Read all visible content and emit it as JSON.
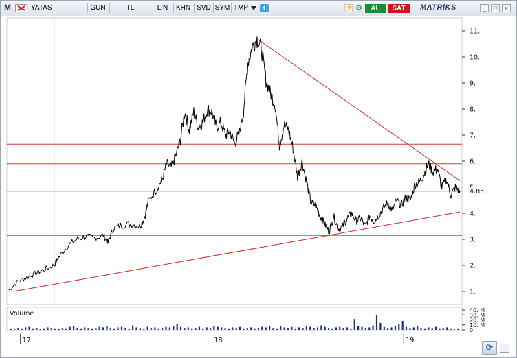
{
  "toolbar": {
    "logo": "M",
    "symbol": "YATAS",
    "buttons": [
      "GUN",
      "TL",
      "LIN",
      "KHN",
      "SVD",
      "SYM",
      "TMP"
    ],
    "buy_label": "AL",
    "sell_label": "SAT",
    "brand": "MATRiKS",
    "window_buttons": [
      "_",
      "□",
      "×"
    ]
  },
  "chart_data": {
    "type": "line",
    "y_ticks": [
      "11.",
      "10.",
      "9.",
      "8.",
      "7.",
      "6.",
      "5.",
      "4.",
      "3.",
      "2.",
      "1."
    ],
    "y_tick_values": [
      11,
      10,
      9,
      8,
      7,
      6,
      5,
      4,
      3,
      2,
      1
    ],
    "ylim": [
      0.5,
      11.5
    ],
    "x_ticks": [
      "17",
      "18",
      "19"
    ],
    "last_value_label": "4.85",
    "last_value": 4.85,
    "horizontal_levels": [
      6.65,
      5.9,
      4.85,
      3.15
    ],
    "trendlines": [
      {
        "from": {
          "t": 0.01,
          "y": 1.0
        },
        "to": {
          "t": 1.0,
          "y": 4.05
        }
      },
      {
        "from": {
          "t": 0.55,
          "y": 10.7
        },
        "to": {
          "t": 1.0,
          "y": 5.25
        }
      }
    ],
    "cursor_t": 0.1,
    "price_points": [
      [
        0.0,
        1.05
      ],
      [
        0.02,
        1.4
      ],
      [
        0.04,
        1.55
      ],
      [
        0.06,
        1.7
      ],
      [
        0.08,
        1.85
      ],
      [
        0.1,
        2.0
      ],
      [
        0.11,
        2.3
      ],
      [
        0.13,
        2.75
      ],
      [
        0.15,
        3.0
      ],
      [
        0.17,
        3.1
      ],
      [
        0.19,
        3.05
      ],
      [
        0.21,
        3.15
      ],
      [
        0.22,
        2.85
      ],
      [
        0.23,
        3.4
      ],
      [
        0.25,
        3.55
      ],
      [
        0.27,
        3.6
      ],
      [
        0.29,
        3.5
      ],
      [
        0.3,
        3.8
      ],
      [
        0.31,
        4.5
      ],
      [
        0.33,
        5.0
      ],
      [
        0.34,
        5.3
      ],
      [
        0.35,
        5.9
      ],
      [
        0.36,
        5.75
      ],
      [
        0.37,
        6.2
      ],
      [
        0.38,
        6.8
      ],
      [
        0.39,
        7.9
      ],
      [
        0.4,
        7.2
      ],
      [
        0.41,
        7.9
      ],
      [
        0.42,
        7.3
      ],
      [
        0.43,
        7.5
      ],
      [
        0.44,
        8.0
      ],
      [
        0.45,
        7.9
      ],
      [
        0.46,
        7.3
      ],
      [
        0.47,
        7.5
      ],
      [
        0.48,
        7.0
      ],
      [
        0.49,
        7.15
      ],
      [
        0.5,
        6.7
      ],
      [
        0.51,
        7.0
      ],
      [
        0.52,
        7.9
      ],
      [
        0.53,
        9.8
      ],
      [
        0.54,
        10.4
      ],
      [
        0.55,
        10.7
      ],
      [
        0.56,
        10.3
      ],
      [
        0.57,
        9.1
      ],
      [
        0.58,
        8.6
      ],
      [
        0.59,
        8.2
      ],
      [
        0.6,
        6.6
      ],
      [
        0.61,
        7.4
      ],
      [
        0.62,
        7.2
      ],
      [
        0.63,
        6.5
      ],
      [
        0.64,
        5.4
      ],
      [
        0.65,
        6.0
      ],
      [
        0.66,
        5.2
      ],
      [
        0.67,
        4.4
      ],
      [
        0.68,
        4.3
      ],
      [
        0.69,
        3.9
      ],
      [
        0.7,
        3.6
      ],
      [
        0.71,
        3.3
      ],
      [
        0.72,
        3.9
      ],
      [
        0.73,
        3.4
      ],
      [
        0.74,
        3.5
      ],
      [
        0.75,
        3.8
      ],
      [
        0.76,
        4.0
      ],
      [
        0.77,
        3.7
      ],
      [
        0.78,
        3.8
      ],
      [
        0.79,
        3.5
      ],
      [
        0.8,
        3.9
      ],
      [
        0.81,
        3.7
      ],
      [
        0.82,
        3.9
      ],
      [
        0.83,
        4.2
      ],
      [
        0.84,
        4.4
      ],
      [
        0.85,
        4.1
      ],
      [
        0.86,
        4.5
      ],
      [
        0.87,
        4.3
      ],
      [
        0.88,
        4.6
      ],
      [
        0.89,
        4.5
      ],
      [
        0.9,
        5.1
      ],
      [
        0.91,
        5.2
      ],
      [
        0.92,
        5.5
      ],
      [
        0.93,
        5.9
      ],
      [
        0.94,
        5.6
      ],
      [
        0.95,
        5.7
      ],
      [
        0.96,
        5.0
      ],
      [
        0.97,
        5.3
      ],
      [
        0.98,
        4.7
      ],
      [
        0.99,
        5.0
      ],
      [
        1.0,
        4.85
      ]
    ]
  },
  "volume": {
    "label": "Volume",
    "ticks": [
      "40. M",
      "30. M",
      "20. M",
      "10. M",
      "0."
    ],
    "tick_values": [
      40,
      30,
      20,
      10,
      0
    ],
    "bars": [
      3,
      2,
      4,
      3,
      5,
      6,
      3,
      4,
      2,
      3,
      5,
      4,
      3,
      2,
      4,
      3,
      6,
      8,
      4,
      3,
      5,
      4,
      3,
      4,
      6,
      5,
      7,
      4,
      3,
      5,
      6,
      4,
      3,
      9,
      5,
      4,
      3,
      6,
      4,
      5,
      3,
      4,
      6,
      5,
      7,
      12,
      6,
      4,
      5,
      3,
      4,
      6,
      3,
      5,
      4,
      8,
      6,
      5,
      4,
      3,
      5,
      4,
      6,
      3,
      4,
      5,
      3,
      4,
      6,
      5,
      7,
      4,
      3,
      8,
      5,
      4,
      6,
      3,
      5,
      4,
      7,
      6,
      4,
      5,
      9,
      6,
      4,
      3,
      5,
      6,
      4,
      5,
      3,
      22,
      8,
      6,
      4,
      5,
      9,
      30,
      14,
      6,
      4,
      5,
      8,
      12,
      18,
      6,
      4,
      5,
      7,
      4,
      3,
      5,
      4,
      6,
      3,
      4,
      5,
      3,
      2,
      3
    ]
  }
}
